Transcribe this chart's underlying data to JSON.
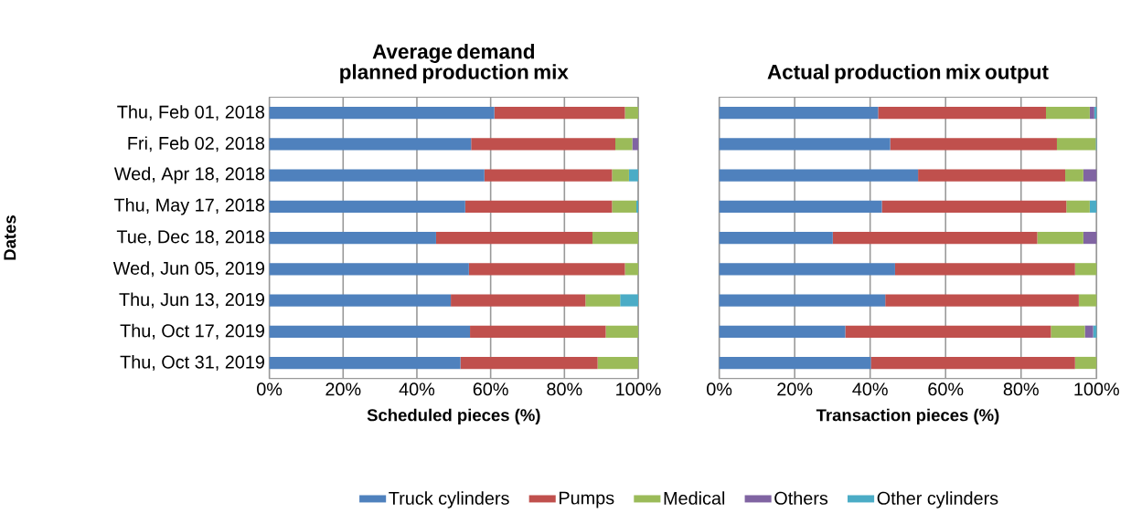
{
  "chart_data": [
    {
      "type": "bar",
      "orientation": "horizontal",
      "stacked": true,
      "title": "Average demand planned production mix",
      "xlabel": "Scheduled pieces (%)",
      "ylabel": "Dates",
      "categories": [
        "Thu, Feb 01, 2018",
        "Fri, Feb 02, 2018",
        "Wed, Apr 18, 2018",
        "Thu, May 17, 2018",
        "Tue, Dec 18, 2018",
        "Wed, Jun 05, 2019",
        "Thu, Jun 13, 2019",
        "Thu, Oct 17, 2019",
        "Thu, Oct 31, 2019"
      ],
      "series": [
        {
          "color": "#4f81bd",
          "values": [
            61.0,
            54.7,
            58.3,
            53.1,
            45.2,
            54.1,
            49.2,
            54.4,
            51.8
          ]
        },
        {
          "color": "#c0504d",
          "values": [
            35.4,
            39.1,
            34.6,
            39.8,
            42.4,
            42.3,
            36.5,
            36.8,
            37.2
          ]
        },
        {
          "color": "#9bbb59",
          "values": [
            3.6,
            4.6,
            4.6,
            6.6,
            12.4,
            3.6,
            9.4,
            8.8,
            11.0
          ]
        },
        {
          "color": "#8064a2",
          "values": [
            0,
            1.6,
            0,
            0,
            0,
            0,
            0,
            0,
            0
          ]
        },
        {
          "color": "#4bacc6",
          "values": [
            0,
            0,
            2.5,
            0.5,
            0,
            0,
            4.9,
            0,
            0
          ]
        }
      ],
      "xlim": [
        0,
        100
      ],
      "xticks": [
        {
          "value": 0,
          "label": "0%"
        },
        {
          "value": 20,
          "label": "20%"
        },
        {
          "value": 40,
          "label": "40%"
        },
        {
          "value": 60,
          "label": "60%"
        },
        {
          "value": 80,
          "label": "80%"
        },
        {
          "value": 100,
          "label": "100%"
        }
      ],
      "grid": "x"
    },
    {
      "type": "bar",
      "orientation": "horizontal",
      "stacked": true,
      "title": "Actual production mix output",
      "xlabel": "Transaction pieces (%)",
      "categories": [
        null,
        null,
        null,
        null,
        null,
        null,
        null,
        null,
        null
      ],
      "series": [
        {
          "name": "Truck cylinders",
          "color": "#4f81bd",
          "values": [
            42.1,
            45.3,
            52.7,
            43.1,
            30.1,
            46.6,
            44.0,
            33.4,
            40.2
          ]
        },
        {
          "name": "Pumps",
          "color": "#c0504d",
          "values": [
            44.5,
            44.2,
            39.0,
            48.9,
            54.2,
            47.7,
            51.3,
            54.5,
            54.1
          ]
        },
        {
          "name": "Medical",
          "color": "#9bbb59",
          "values": [
            11.6,
            10.3,
            4.8,
            6.2,
            12.2,
            5.7,
            4.7,
            9.0,
            5.7
          ]
        },
        {
          "name": "Others",
          "color": "#8064a2",
          "values": [
            1.2,
            0,
            3.5,
            0,
            3.5,
            0,
            0,
            2.2,
            0
          ]
        },
        {
          "name": "Other cylinders",
          "color": "#4bacc6",
          "values": [
            0.6,
            0.2,
            0,
            1.8,
            0,
            0,
            0,
            0.9,
            0
          ]
        }
      ],
      "xlim": [
        0,
        100
      ],
      "xticks": [
        {
          "value": 0,
          "label": "0%"
        },
        {
          "value": 20,
          "label": "20%"
        },
        {
          "value": 40,
          "label": "40%"
        },
        {
          "value": 60,
          "label": "60%"
        },
        {
          "value": 80,
          "label": "80%"
        },
        {
          "value": 100,
          "label": "100%"
        }
      ],
      "grid": "x",
      "tick_labels": "x",
      "legend": "bottom"
    }
  ]
}
